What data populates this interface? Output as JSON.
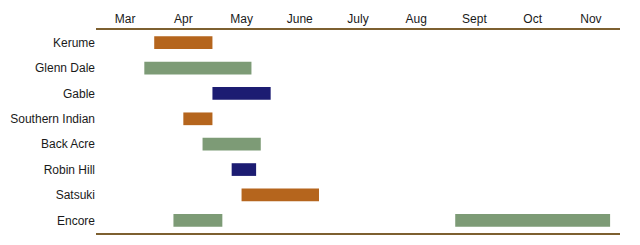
{
  "chart_data": {
    "type": "bar",
    "orientation": "horizontal",
    "categories": [
      "Kerume",
      "Glenn Dale",
      "Gable",
      "Southern Indian",
      "Back Acre",
      "Robin Hill",
      "Satsuki",
      "Encore"
    ],
    "values": [
      [
        [
          3.5,
          4.5
        ]
      ],
      [
        [
          3.33,
          5.17
        ]
      ],
      [
        [
          4.5,
          5.5
        ]
      ],
      [
        [
          4.0,
          4.5
        ]
      ],
      [
        [
          4.33,
          5.33
        ]
      ],
      [
        [
          4.83,
          5.25
        ]
      ],
      [
        [
          5.0,
          6.33
        ]
      ],
      [
        [
          3.83,
          4.67
        ],
        [
          8.67,
          11.33
        ]
      ]
    ],
    "colors": [
      [
        "#b5651d"
      ],
      [
        "#7d9b76"
      ],
      [
        "#1c1c72"
      ],
      [
        "#b5651d"
      ],
      [
        "#7d9b76"
      ],
      [
        "#1c1c72"
      ],
      [
        "#b5651d"
      ],
      [
        "#7d9b76",
        "#7d9b76"
      ]
    ],
    "xlim": [
      2.5,
      11.5
    ],
    "xticks": [
      {
        "value": 3,
        "label": "Mar"
      },
      {
        "value": 4,
        "label": "Apr"
      },
      {
        "value": 5,
        "label": "May"
      },
      {
        "value": 6,
        "label": "June"
      },
      {
        "value": 7,
        "label": "July"
      },
      {
        "value": 8,
        "label": "Aug"
      },
      {
        "value": 9,
        "label": "Sept"
      },
      {
        "value": 10,
        "label": "Oct"
      },
      {
        "value": 11,
        "label": "Nov"
      }
    ],
    "grid": false
  }
}
